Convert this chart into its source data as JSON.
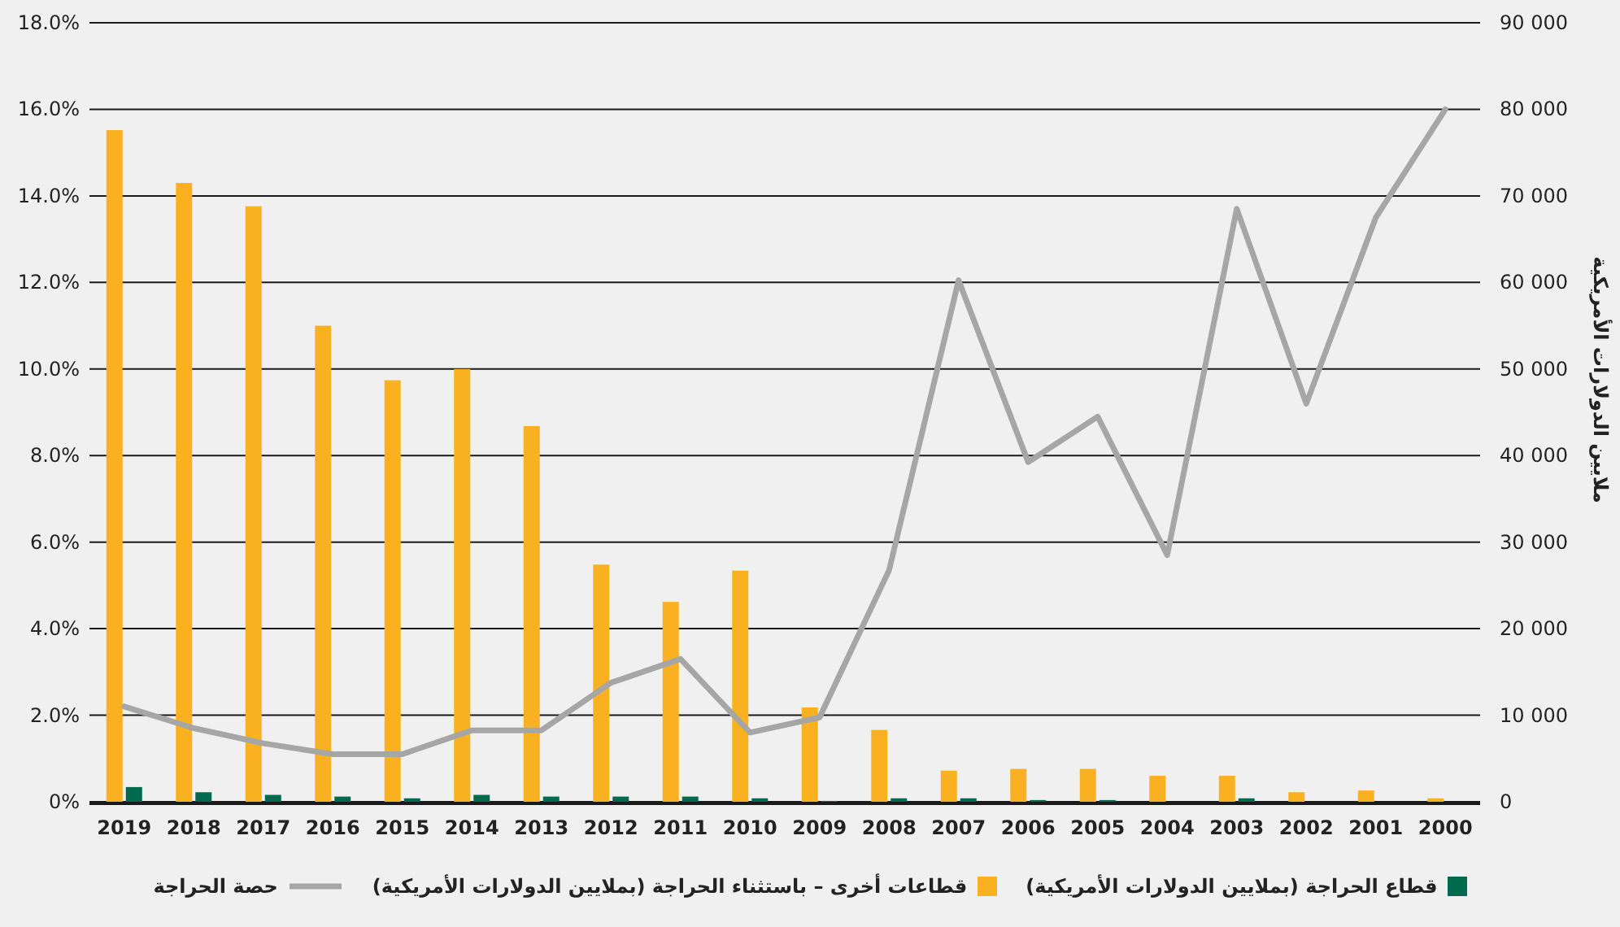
{
  "chart_data": {
    "type": "bar",
    "categories": [
      "2019",
      "2018",
      "2017",
      "2016",
      "2015",
      "2014",
      "2013",
      "2012",
      "2011",
      "2010",
      "2009",
      "2008",
      "2007",
      "2006",
      "2005",
      "2004",
      "2003",
      "2002",
      "2001",
      "2000"
    ],
    "series": [
      {
        "name": "قطاع الحراجة (بملايين الدولارات الأمريكية)",
        "axis": "y2",
        "color": "#006a4e",
        "values": [
          1700,
          1100,
          800,
          600,
          400,
          800,
          600,
          600,
          600,
          400,
          100,
          400,
          400,
          200,
          200,
          0,
          400,
          0,
          0,
          0
        ]
      },
      {
        "name": "قطاعات أخرى – باستثناء الحراجة (بملايين الدولارات الأمريكية)",
        "axis": "y2",
        "color": "#f9b122",
        "values": [
          77600,
          71500,
          68800,
          55000,
          48700,
          50000,
          43400,
          27400,
          23100,
          26700,
          10900,
          8300,
          3600,
          3800,
          3800,
          3000,
          3000,
          1100,
          1300,
          400
        ]
      },
      {
        "name": "حصة الحراجة",
        "type": "line",
        "axis": "y",
        "color": "#a6a6a6",
        "values": [
          2.2,
          1.7,
          1.35,
          1.1,
          1.1,
          1.65,
          1.65,
          2.75,
          3.3,
          1.6,
          1.95,
          5.35,
          12.05,
          7.85,
          8.9,
          5.7,
          13.7,
          9.2,
          13.5,
          16.0
        ]
      }
    ],
    "ylim": [
      0,
      18
    ],
    "yticks": [
      {
        "value": 0,
        "label": "0%"
      },
      {
        "value": 2,
        "label": "2.0%"
      },
      {
        "value": 4,
        "label": "4.0%"
      },
      {
        "value": 6,
        "label": "6.0%"
      },
      {
        "value": 8,
        "label": "8.0%"
      },
      {
        "value": 10,
        "label": "10.0%"
      },
      {
        "value": 12,
        "label": "12.0%"
      },
      {
        "value": 14,
        "label": "14.0%"
      },
      {
        "value": 16,
        "label": "16.0%"
      },
      {
        "value": 18,
        "label": "18.0%"
      }
    ],
    "y2lim": [
      0,
      90000
    ],
    "y2ticks": [
      0,
      {
        "value": 10000,
        "label": "10 000"
      },
      {
        "value": 20000,
        "label": "20 000"
      },
      {
        "value": 30000,
        "label": "30 000"
      },
      {
        "value": 40000,
        "label": "40 000"
      },
      {
        "value": 50000,
        "label": "50 000"
      },
      {
        "value": 60000,
        "label": "60 000"
      },
      {
        "value": 70000,
        "label": "70 000"
      },
      {
        "value": 80000,
        "label": "80 000"
      },
      {
        "value": 90000,
        "label": "90 000"
      }
    ],
    "y2label": "ملايين الدولارات الأمريكية",
    "grid": "y",
    "legend": "bottom"
  }
}
